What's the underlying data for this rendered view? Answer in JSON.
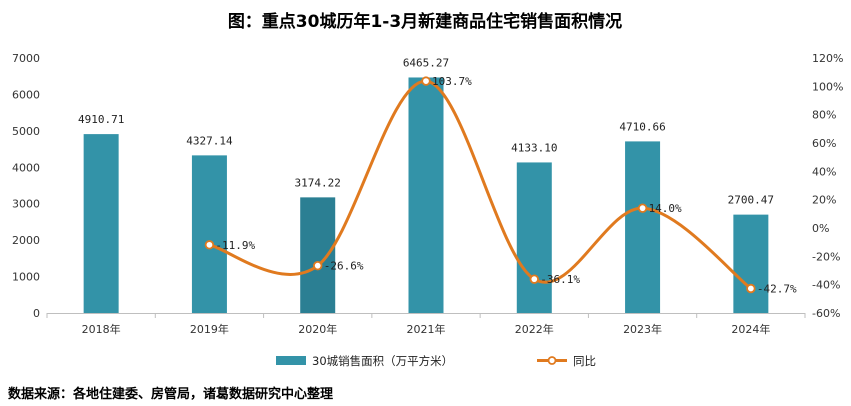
{
  "chart_data": {
    "type": "bar",
    "title": "图：重点30城历年1-3月新建商品住宅销售面积情况",
    "categories": [
      "2018年",
      "2019年",
      "2020年",
      "2021年",
      "2022年",
      "2023年",
      "2024年"
    ],
    "series": [
      {
        "name": "30城销售面积（万平方米）",
        "type": "bar",
        "axis": "left",
        "values": [
          4910.71,
          4327.14,
          3174.22,
          6465.27,
          4133.1,
          4710.66,
          2700.47
        ],
        "labels": [
          "4910.71",
          "4327.14",
          "3174.22",
          "6465.27",
          "4133.10",
          "4710.66",
          "2700.47"
        ],
        "color": "#3393A8",
        "highlight_color": "#2B7F93"
      },
      {
        "name": "同比",
        "type": "line",
        "axis": "right",
        "values": [
          null,
          -11.9,
          -26.6,
          103.7,
          -36.1,
          14.0,
          -42.7
        ],
        "labels": [
          "",
          "-11.9%",
          "-26.6%",
          "103.7%",
          "-36.1%",
          "14.0%",
          "-42.7%"
        ],
        "color": "#E07A1F"
      }
    ],
    "y_left": {
      "ylim": [
        0,
        7000
      ],
      "ticks": [
        "0",
        "1000",
        "2000",
        "3000",
        "4000",
        "5000",
        "6000",
        "7000"
      ]
    },
    "y_right": {
      "ylim": [
        -60,
        120
      ],
      "ticks": [
        "-60%",
        "-40%",
        "-20%",
        "0%",
        "20%",
        "40%",
        "60%",
        "80%",
        "100%",
        "120%"
      ]
    },
    "grid": false,
    "legend_position": "bottom"
  },
  "source_note": "数据来源：各地住建委、房管局，诸葛数据研究中心整理"
}
